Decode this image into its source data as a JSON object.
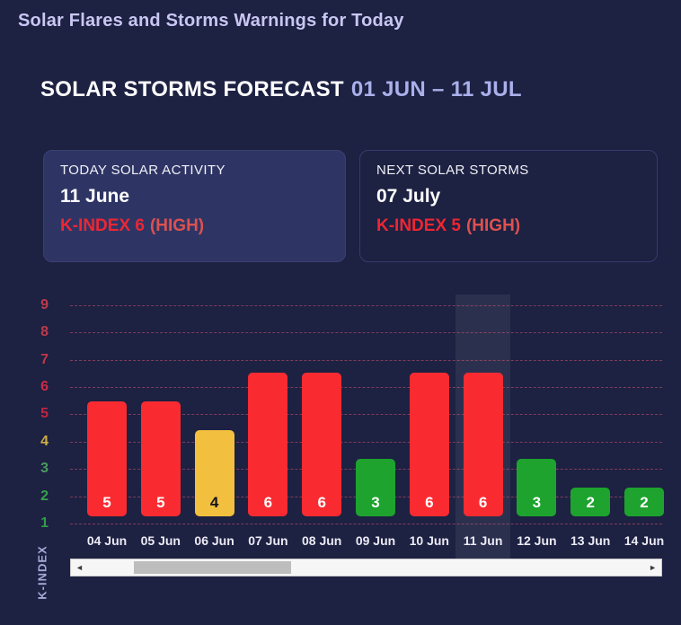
{
  "page": {
    "title": "Solar Flares and Storms Warnings for Today"
  },
  "forecast": {
    "heading": "SOLAR STORMS FORECAST",
    "range": "01 JUN – 11 JUL"
  },
  "cards": {
    "today": {
      "label": "TODAY SOLAR ACTIVITY",
      "date": "11 June",
      "kindex": "K-INDEX 6",
      "level": "(HIGH)"
    },
    "next": {
      "label": "NEXT SOLAR STORMS",
      "date": "07 July",
      "kindex": "K-INDEX 5",
      "level": "(HIGH)"
    }
  },
  "chart_data": {
    "type": "bar",
    "title": "",
    "xlabel": "",
    "ylabel": "K-INDEX",
    "categories": [
      "04 Jun",
      "05 Jun",
      "06 Jun",
      "07 Jun",
      "08 Jun",
      "09 Jun",
      "10 Jun",
      "11 Jun",
      "12 Jun",
      "13 Jun",
      "14 Jun"
    ],
    "values": [
      5,
      5,
      4,
      6,
      6,
      3,
      6,
      6,
      3,
      2,
      2
    ],
    "bar_colors": [
      "#f92b31",
      "#f92b31",
      "#f2bf3f",
      "#f92b31",
      "#f92b31",
      "#1da32e",
      "#f92b31",
      "#f92b31",
      "#1da32e",
      "#1da32e",
      "#1da32e"
    ],
    "value_label_colors": [
      "#ffffff",
      "#ffffff",
      "#14141c",
      "#ffffff",
      "#ffffff",
      "#ffffff",
      "#ffffff",
      "#ffffff",
      "#ffffff",
      "#ffffff",
      "#ffffff"
    ],
    "highlighted_category": "11 Jun",
    "highlighted_index": 7,
    "y_ticks": [
      1,
      2,
      3,
      4,
      5,
      6,
      7,
      8,
      9
    ],
    "y_tick_colors": [
      "#2e9c48",
      "#35a24d",
      "#4a9c5c",
      "#cfae46",
      "#c02442",
      "#cc2c45",
      "#c23647",
      "#bd3a49",
      "#bd3a49"
    ],
    "ylim": [
      0,
      9
    ],
    "grid": "horizontal-dashed",
    "legend": "none"
  },
  "scrollbar": {
    "left_arrow": "◄",
    "right_arrow": "►"
  },
  "colors": {
    "background": "#1d2142",
    "title": "#c9c6f3",
    "heading_range": "#a9b0ea",
    "card_fill": "#2e3565",
    "kindex_red": "#ee2632",
    "high_red": "#dd5150",
    "gridline": "rgba(228,90,112,0.5)",
    "highlight_band": "rgba(255,255,255,0.07)"
  }
}
